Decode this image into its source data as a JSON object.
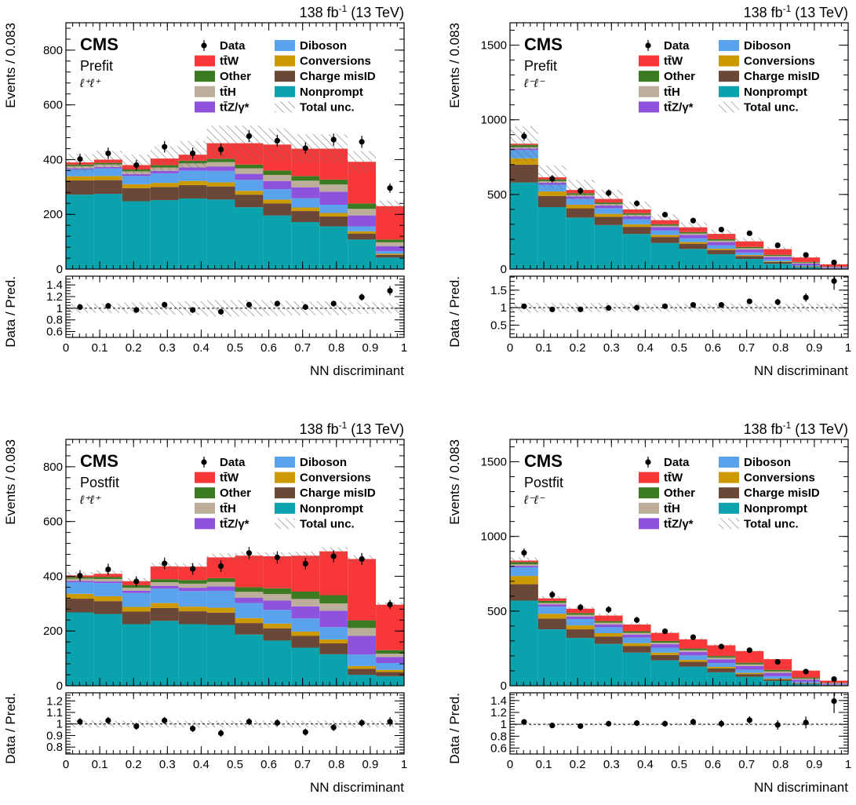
{
  "common": {
    "experiment": "CMS",
    "lumi_text": "138 fb",
    "lumi_exp": "-1",
    "energy_text": " (13 TeV)",
    "xlabel": "NN discriminant",
    "ylabel_main": "Events / 0.083",
    "ylabel_ratio": "Data / Pred.",
    "legend_left": [
      {
        "key": "data",
        "label": "Data",
        "kind": "marker"
      },
      {
        "key": "ttW",
        "label": "tt̄W",
        "kind": "box"
      },
      {
        "key": "other",
        "label": "Other",
        "kind": "box"
      },
      {
        "key": "ttH",
        "label": "tt̄H",
        "kind": "box"
      },
      {
        "key": "ttZ",
        "label": "tt̄Z/γ*",
        "kind": "box"
      }
    ],
    "legend_right": [
      {
        "key": "diboson",
        "label": "Diboson",
        "kind": "box"
      },
      {
        "key": "conversions",
        "label": "Conversions",
        "kind": "box"
      },
      {
        "key": "chargemisid",
        "label": "Charge misID",
        "kind": "box"
      },
      {
        "key": "nonprompt",
        "label": "Nonprompt",
        "kind": "box"
      },
      {
        "key": "unc",
        "label": "Total unc.",
        "kind": "hatch"
      }
    ],
    "colors": {
      "nonprompt": "#0aa2ad",
      "chargemisid": "#6b4738",
      "conversions": "#cc9a00",
      "diboson": "#5aa2ec",
      "ttZ": "#8e52dc",
      "ttH": "#bdae9c",
      "other": "#3c7a22",
      "ttW": "#f83838",
      "data": "#000000",
      "hatch": "#6f6f6f"
    },
    "stack_order": [
      "nonprompt",
      "chargemisid",
      "conversions",
      "diboson",
      "ttZ",
      "ttH",
      "other",
      "ttW"
    ]
  },
  "chart_data": [
    {
      "type": "bar",
      "fit_label": "Prefit",
      "channel": "ℓ⁺ℓ⁺",
      "bin_edges": [
        0,
        0.0833,
        0.1667,
        0.25,
        0.3333,
        0.4167,
        0.5,
        0.5833,
        0.6667,
        0.75,
        0.8333,
        0.9167,
        1.0
      ],
      "xlim": [
        0,
        1
      ],
      "xticks": [
        0,
        0.1,
        0.2,
        0.3,
        0.4,
        0.5,
        0.6,
        0.7,
        0.8,
        0.9,
        1
      ],
      "ylim": [
        0,
        900
      ],
      "yticks": [
        0,
        200,
        400,
        600,
        800
      ],
      "ratio_ylim": [
        0.5,
        1.55
      ],
      "ratio_yticks": [
        0.6,
        0.8,
        1,
        1.2,
        1.4
      ],
      "series": [
        {
          "key": "nonprompt",
          "name": "Nonprompt",
          "values": [
            272,
            275,
            248,
            252,
            258,
            254,
            226,
            196,
            172,
            156,
            108,
            42
          ]
        },
        {
          "key": "chargemisid",
          "name": "Charge misID",
          "values": [
            52,
            50,
            48,
            48,
            49,
            48,
            46,
            44,
            40,
            36,
            22,
            10
          ]
        },
        {
          "key": "conversions",
          "name": "Conversions",
          "values": [
            15,
            15,
            14,
            15,
            15,
            15,
            14,
            14,
            13,
            13,
            8,
            4
          ]
        },
        {
          "key": "diboson",
          "name": "Diboson",
          "values": [
            25,
            28,
            30,
            35,
            38,
            42,
            40,
            38,
            34,
            30,
            18,
            10
          ]
        },
        {
          "key": "ttZ",
          "name": "tt̄Z/γ*",
          "values": [
            4,
            5,
            7,
            9,
            12,
            16,
            22,
            30,
            40,
            48,
            40,
            18
          ]
        },
        {
          "key": "ttH",
          "name": "tt̄H",
          "values": [
            8,
            9,
            10,
            12,
            14,
            16,
            20,
            22,
            24,
            26,
            24,
            14
          ]
        },
        {
          "key": "other",
          "name": "Other",
          "values": [
            6,
            6,
            7,
            9,
            10,
            12,
            14,
            16,
            17,
            18,
            20,
            10
          ]
        },
        {
          "key": "ttW",
          "name": "tt̄W",
          "values": [
            8,
            12,
            16,
            24,
            22,
            57,
            78,
            95,
            100,
            113,
            152,
            122
          ]
        }
      ],
      "unc_frac": [
        0.08,
        0.08,
        0.1,
        0.11,
        0.12,
        0.14,
        0.14,
        0.13,
        0.12,
        0.12,
        0.1,
        0.09
      ],
      "data": [
        402,
        423,
        380,
        447,
        423,
        437,
        486,
        469,
        442,
        473,
        465,
        296
      ],
      "data_err": [
        20,
        21,
        19,
        21,
        21,
        21,
        22,
        22,
        21,
        22,
        22,
        17
      ],
      "ratio": [
        1.02,
        1.04,
        0.97,
        1.06,
        0.97,
        0.94,
        1.06,
        1.08,
        1.02,
        1.08,
        1.19,
        1.3
      ],
      "ratio_err": [
        0.05,
        0.05,
        0.05,
        0.05,
        0.05,
        0.05,
        0.05,
        0.05,
        0.05,
        0.05,
        0.06,
        0.08
      ]
    },
    {
      "type": "bar",
      "fit_label": "Prefit",
      "channel": "ℓ⁻ℓ⁻",
      "bin_edges": [
        0,
        0.0833,
        0.1667,
        0.25,
        0.3333,
        0.4167,
        0.5,
        0.5833,
        0.6667,
        0.75,
        0.8333,
        0.9167,
        1.0
      ],
      "xlim": [
        0,
        1
      ],
      "xticks": [
        0,
        0.1,
        0.2,
        0.3,
        0.4,
        0.5,
        0.6,
        0.7,
        0.8,
        0.9,
        1
      ],
      "ylim": [
        0,
        1650
      ],
      "yticks": [
        0,
        500,
        1000,
        1500
      ],
      "ratio_ylim": [
        0.15,
        1.9
      ],
      "ratio_yticks": [
        0.5,
        1,
        1.5
      ],
      "series": [
        {
          "key": "nonprompt",
          "name": "Nonprompt",
          "values": [
            580,
            415,
            345,
            295,
            235,
            175,
            135,
            100,
            68,
            36,
            14,
            4
          ]
        },
        {
          "key": "chargemisid",
          "name": "Charge misID",
          "values": [
            120,
            75,
            62,
            55,
            48,
            40,
            35,
            28,
            20,
            12,
            4,
            1
          ]
        },
        {
          "key": "conversions",
          "name": "Conversions",
          "values": [
            42,
            30,
            24,
            20,
            17,
            14,
            11,
            9,
            6,
            4,
            2,
            1
          ]
        },
        {
          "key": "diboson",
          "name": "Diboson",
          "values": [
            55,
            45,
            40,
            38,
            34,
            30,
            26,
            22,
            17,
            12,
            6,
            2
          ]
        },
        {
          "key": "ttZ",
          "name": "tt̄Z/γ*",
          "values": [
            10,
            14,
            16,
            18,
            20,
            22,
            22,
            22,
            20,
            17,
            11,
            5
          ]
        },
        {
          "key": "ttH",
          "name": "tt̄H",
          "values": [
            10,
            10,
            10,
            10,
            10,
            10,
            10,
            10,
            9,
            8,
            6,
            3
          ]
        },
        {
          "key": "other",
          "name": "Other",
          "values": [
            15,
            12,
            11,
            10,
            10,
            9,
            9,
            9,
            8,
            7,
            5,
            2
          ]
        },
        {
          "key": "ttW",
          "name": "tt̄W",
          "values": [
            8,
            14,
            22,
            24,
            26,
            28,
            32,
            36,
            38,
            38,
            30,
            14
          ]
        }
      ],
      "unc_frac": [
        0.14,
        0.13,
        0.13,
        0.13,
        0.13,
        0.12,
        0.12,
        0.12,
        0.12,
        0.12,
        0.12,
        0.12
      ],
      "data": [
        890,
        605,
        525,
        510,
        440,
        365,
        325,
        265,
        240,
        160,
        95,
        45
      ],
      "data_err": [
        30,
        25,
        23,
        23,
        21,
        19,
        18,
        16,
        15,
        13,
        10,
        7
      ],
      "ratio": [
        1.04,
        0.95,
        0.95,
        0.99,
        1.0,
        1.04,
        1.08,
        1.08,
        1.18,
        1.16,
        1.29,
        1.76
      ],
      "ratio_err": [
        0.04,
        0.04,
        0.04,
        0.04,
        0.05,
        0.05,
        0.06,
        0.06,
        0.07,
        0.09,
        0.12,
        0.25
      ]
    },
    {
      "type": "bar",
      "fit_label": "Postfit",
      "channel": "ℓ⁺ℓ⁺",
      "bin_edges": [
        0,
        0.0833,
        0.1667,
        0.25,
        0.3333,
        0.4167,
        0.5,
        0.5833,
        0.6667,
        0.75,
        0.8333,
        0.9167,
        1.0
      ],
      "xlim": [
        0,
        1
      ],
      "xticks": [
        0,
        0.1,
        0.2,
        0.3,
        0.4,
        0.5,
        0.6,
        0.7,
        0.8,
        0.9,
        1
      ],
      "ylim": [
        0,
        900
      ],
      "yticks": [
        0,
        200,
        400,
        600,
        800
      ],
      "ratio_ylim": [
        0.74,
        1.27
      ],
      "ratio_yticks": [
        0.8,
        0.9,
        1,
        1.1,
        1.2
      ],
      "series": [
        {
          "key": "nonprompt",
          "name": "Nonprompt",
          "values": [
            268,
            262,
            225,
            237,
            225,
            222,
            187,
            165,
            139,
            115,
            40,
            35
          ]
        },
        {
          "key": "chargemisid",
          "name": "Charge misID",
          "values": [
            50,
            47,
            46,
            47,
            47,
            45,
            42,
            45,
            43,
            40,
            22,
            15
          ]
        },
        {
          "key": "conversions",
          "name": "Conversions",
          "values": [
            18,
            18,
            17,
            18,
            17,
            18,
            18,
            17,
            16,
            14,
            10,
            8
          ]
        },
        {
          "key": "diboson",
          "name": "Diboson",
          "values": [
            42,
            48,
            51,
            53,
            57,
            62,
            55,
            50,
            48,
            45,
            42,
            25
          ]
        },
        {
          "key": "ttZ",
          "name": "tt̄Z/γ*",
          "values": [
            5,
            6,
            8,
            10,
            12,
            16,
            20,
            34,
            44,
            60,
            68,
            22
          ]
        },
        {
          "key": "ttH",
          "name": "tt̄H",
          "values": [
            8,
            9,
            11,
            13,
            15,
            16,
            21,
            24,
            27,
            27,
            29,
            12
          ]
        },
        {
          "key": "other",
          "name": "Other",
          "values": [
            6,
            7,
            9,
            11,
            13,
            14,
            17,
            21,
            27,
            30,
            28,
            13
          ]
        },
        {
          "key": "ttW",
          "name": "tt̄W",
          "values": [
            6,
            12,
            15,
            47,
            49,
            76,
            115,
            117,
            131,
            160,
            224,
            166
          ]
        }
      ],
      "unc_frac": [
        0.03,
        0.03,
        0.03,
        0.03,
        0.03,
        0.03,
        0.03,
        0.03,
        0.03,
        0.03,
        0.03,
        0.03
      ],
      "data": [
        402,
        425,
        381,
        447,
        427,
        437,
        485,
        469,
        446,
        473,
        463,
        297
      ],
      "data_err": [
        20,
        21,
        19,
        21,
        21,
        21,
        22,
        22,
        21,
        22,
        22,
        17
      ],
      "ratio": [
        1.02,
        1.03,
        0.98,
        1.03,
        0.96,
        0.92,
        1.02,
        1.01,
        0.93,
        0.97,
        1.01,
        1.02
      ],
      "ratio_err": [
        0.03,
        0.03,
        0.03,
        0.03,
        0.03,
        0.03,
        0.03,
        0.03,
        0.03,
        0.03,
        0.03,
        0.04
      ]
    },
    {
      "type": "bar",
      "fit_label": "Postfit",
      "channel": "ℓ⁻ℓ⁻",
      "bin_edges": [
        0,
        0.0833,
        0.1667,
        0.25,
        0.3333,
        0.4167,
        0.5,
        0.5833,
        0.6667,
        0.75,
        0.8333,
        0.9167,
        1.0
      ],
      "xlim": [
        0,
        1
      ],
      "xticks": [
        0,
        0.1,
        0.2,
        0.3,
        0.4,
        0.5,
        0.6,
        0.7,
        0.8,
        0.9,
        1
      ],
      "ylim": [
        0,
        1650
      ],
      "yticks": [
        0,
        500,
        1000,
        1500
      ],
      "ratio_ylim": [
        0.5,
        1.53
      ],
      "ratio_yticks": [
        0.6,
        0.8,
        1,
        1.2,
        1.4
      ],
      "series": [
        {
          "key": "nonprompt",
          "name": "Nonprompt",
          "values": [
            570,
            378,
            320,
            280,
            222,
            170,
            128,
            90,
            60,
            32,
            12,
            3
          ]
        },
        {
          "key": "chargemisid",
          "name": "Charge misID",
          "values": [
            110,
            72,
            58,
            50,
            44,
            36,
            32,
            26,
            18,
            10,
            4,
            1
          ]
        },
        {
          "key": "conversions",
          "name": "Conversions",
          "values": [
            55,
            32,
            26,
            22,
            19,
            16,
            13,
            10,
            8,
            5,
            2,
            1
          ]
        },
        {
          "key": "diboson",
          "name": "Diboson",
          "values": [
            58,
            48,
            43,
            40,
            37,
            33,
            30,
            26,
            22,
            17,
            9,
            3
          ]
        },
        {
          "key": "ttZ",
          "name": "tt̄Z/γ*",
          "values": [
            10,
            14,
            17,
            19,
            21,
            23,
            24,
            25,
            24,
            22,
            14,
            6
          ]
        },
        {
          "key": "ttH",
          "name": "tt̄H",
          "values": [
            10,
            11,
            11,
            11,
            11,
            11,
            11,
            11,
            11,
            10,
            7,
            3
          ]
        },
        {
          "key": "other",
          "name": "Other",
          "values": [
            15,
            13,
            12,
            11,
            11,
            11,
            11,
            11,
            11,
            10,
            7,
            3
          ]
        },
        {
          "key": "ttW",
          "name": "tt̄W",
          "values": [
            10,
            17,
            29,
            37,
            45,
            54,
            62,
            72,
            78,
            72,
            46,
            14
          ]
        }
      ],
      "unc_frac": [
        0.025,
        0.025,
        0.025,
        0.025,
        0.025,
        0.025,
        0.025,
        0.025,
        0.025,
        0.025,
        0.025,
        0.025
      ],
      "data": [
        890,
        610,
        525,
        510,
        440,
        365,
        325,
        262,
        238,
        160,
        95,
        45
      ],
      "data_err": [
        30,
        25,
        23,
        23,
        21,
        19,
        18,
        16,
        15,
        13,
        10,
        7
      ],
      "ratio": [
        1.04,
        0.98,
        0.97,
        1.01,
        1.02,
        1.01,
        1.04,
        1.01,
        1.07,
        0.99,
        1.03,
        1.39
      ],
      "ratio_err": [
        0.035,
        0.04,
        0.04,
        0.045,
        0.05,
        0.05,
        0.055,
        0.06,
        0.065,
        0.08,
        0.1,
        0.2
      ]
    }
  ]
}
